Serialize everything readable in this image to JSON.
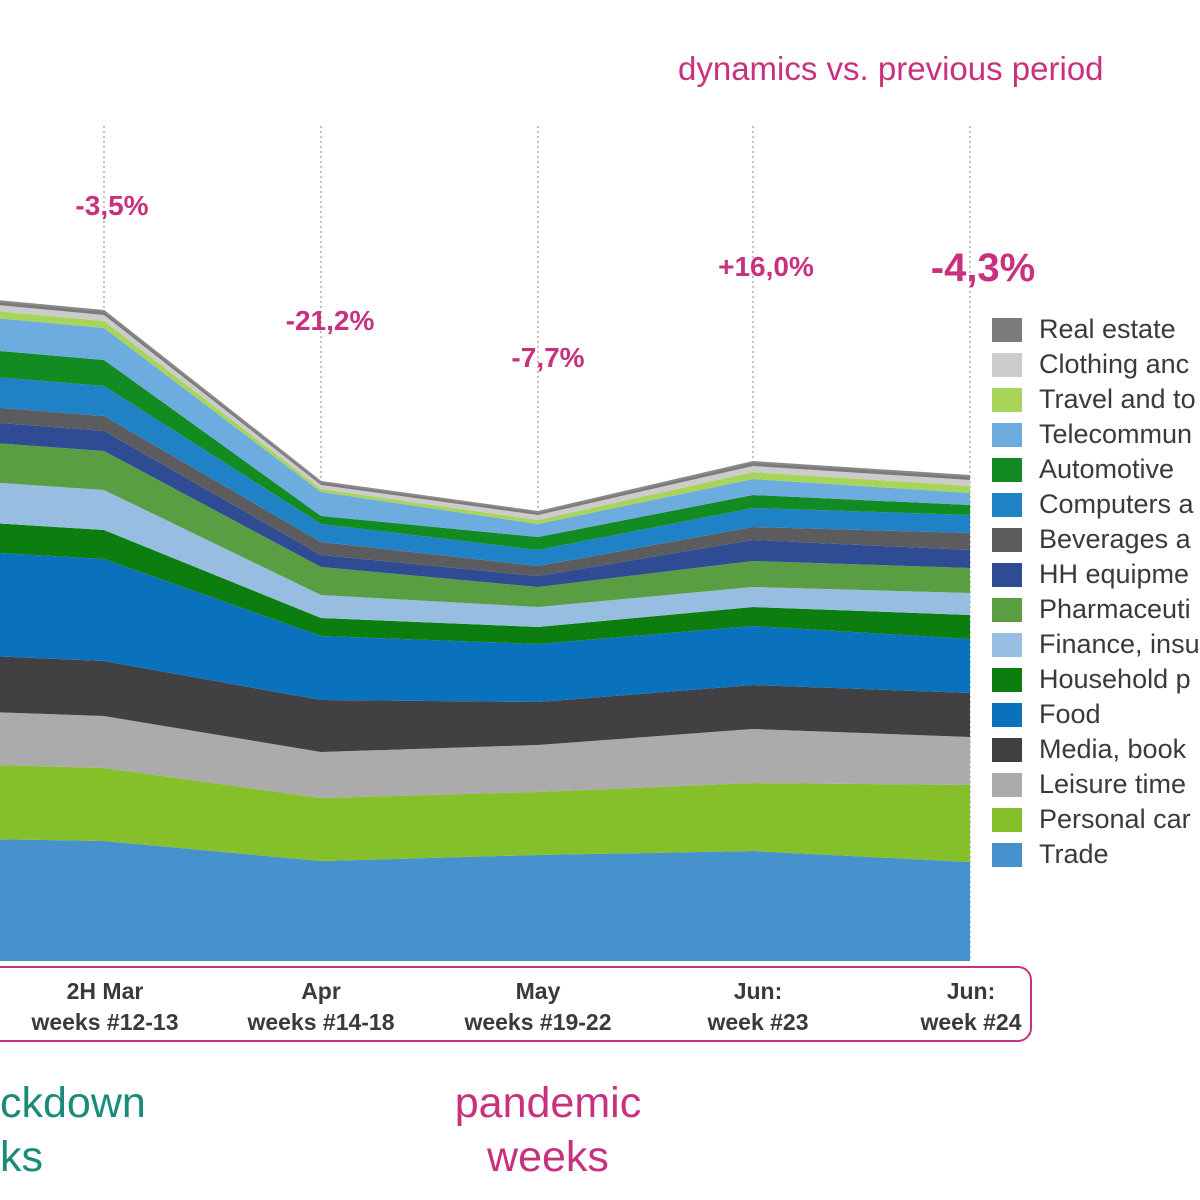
{
  "header": {
    "dynamics_title": "dynamics vs. previous period"
  },
  "chart_data": {
    "type": "area",
    "stacked": true,
    "categories": [
      "2H Mar weeks #12-13",
      "Apr weeks #14-18",
      "May weeks #19-22",
      "Jun: week #23",
      "Jun: week #24"
    ],
    "series": [
      {
        "name": "Trade",
        "color": "#4592cc",
        "values": [
          120,
          100,
          106,
          110,
          99
        ]
      },
      {
        "name": "Personal car",
        "color": "#85bf29",
        "values": [
          73,
          63,
          63,
          68,
          77
        ]
      },
      {
        "name": "Leisure time",
        "color": "#ababab",
        "values": [
          52,
          46,
          47,
          54,
          48
        ]
      },
      {
        "name": "Media, book",
        "color": "#414143",
        "values": [
          55,
          52,
          43,
          44,
          44
        ]
      },
      {
        "name": "Food",
        "color": "#0a72bd",
        "values": [
          102,
          64,
          58,
          59,
          54
        ]
      },
      {
        "name": "Household p",
        "color": "#0c7e10",
        "values": [
          29,
          18,
          17,
          19,
          24
        ]
      },
      {
        "name": "Finance, insu",
        "color": "#97bde0",
        "values": [
          40,
          23,
          20,
          20,
          22
        ]
      },
      {
        "name": "Pharmaceuti",
        "color": "#5a9e44",
        "values": [
          39,
          28,
          20,
          26,
          25
        ]
      },
      {
        "name": "HH equipme",
        "color": "#2e4b93",
        "values": [
          20,
          12,
          11,
          21,
          18
        ]
      },
      {
        "name": "Beverages a",
        "color": "#5c5c5e",
        "values": [
          15,
          13,
          10,
          13,
          17
        ]
      },
      {
        "name": "Computers a",
        "color": "#1f82c6",
        "values": [
          30,
          18,
          16,
          19,
          18
        ]
      },
      {
        "name": "Automotive",
        "color": "#138b23",
        "values": [
          26,
          8,
          13,
          13,
          10
        ]
      },
      {
        "name": "Telecommun",
        "color": "#6cacdf",
        "values": [
          32,
          24,
          13,
          16,
          12
        ]
      },
      {
        "name": "Travel and to",
        "color": "#a9d45a",
        "values": [
          7,
          3,
          4,
          7,
          7
        ]
      },
      {
        "name": "Clothing anc",
        "color": "#cccccc",
        "values": [
          6,
          4,
          5,
          6,
          6
        ]
      },
      {
        "name": "Real estate",
        "color": "#7b7b7b",
        "values": [
          4,
          3,
          3,
          4,
          4
        ]
      }
    ],
    "ylim": [
      0,
      800
    ],
    "annotations": [
      "-3,5%",
      "-21,2%",
      "-7,7%",
      "+16,0%",
      "-4,3%"
    ],
    "grid": "vertical dotted lines at each period"
  },
  "periods": [
    {
      "line1": "2H Mar",
      "line2": "weeks #12-13"
    },
    {
      "line1": "Apr",
      "line2": "weeks #14-18"
    },
    {
      "line1": "May",
      "line2": "weeks #19-22"
    },
    {
      "line1": "Jun:",
      "line2": "week #23"
    },
    {
      "line1": "Jun:",
      "line2": "week #24"
    }
  ],
  "legend": [
    "Real estate",
    "Clothing anc",
    "Travel and to",
    "Telecommun",
    "Automotive",
    "Computers a",
    "Beverages a",
    "HH equipme",
    "Pharmaceuti",
    "Finance, insu",
    "Household p",
    "Food",
    "Media, book",
    "Leisure time",
    "Personal car",
    "Trade"
  ],
  "footer": {
    "lockdown_line1": "ckdown",
    "lockdown_line2": "ks",
    "pandemic_line1": "pandemic",
    "pandemic_line2": "weeks"
  }
}
